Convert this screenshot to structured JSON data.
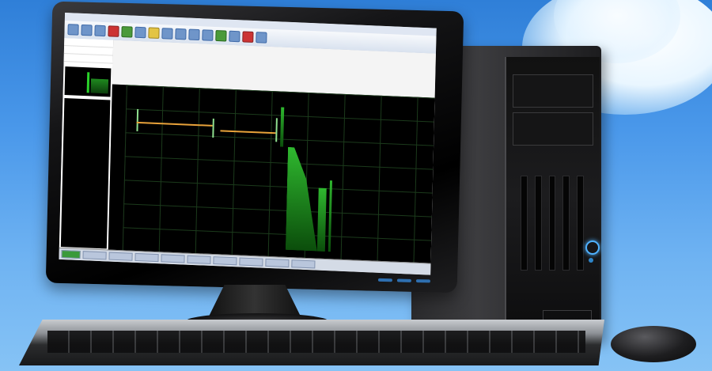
{
  "scene": {
    "colors": {
      "sky_top": "#2f7fd8",
      "sky_bottom": "#86c3f5",
      "power_led": "#4fb2ff",
      "trace_green": "#2fb82f",
      "trace_orange": "#e8a23a"
    }
  },
  "app": {
    "menu": [
      "",
      "",
      "",
      "",
      "",
      "",
      ""
    ],
    "toolbar_icons": [
      "open-icon",
      "save-icon",
      "print-icon",
      "record-icon",
      "play-icon",
      "zoom-icon",
      "settings-icon",
      "help-icon"
    ],
    "left_panel_rows": [
      "",
      "",
      "",
      "",
      ""
    ],
    "info_lines": [
      "",
      "",
      ""
    ],
    "status_items": [
      "",
      "",
      "",
      "",
      "",
      "",
      "",
      "",
      "",
      ""
    ]
  }
}
